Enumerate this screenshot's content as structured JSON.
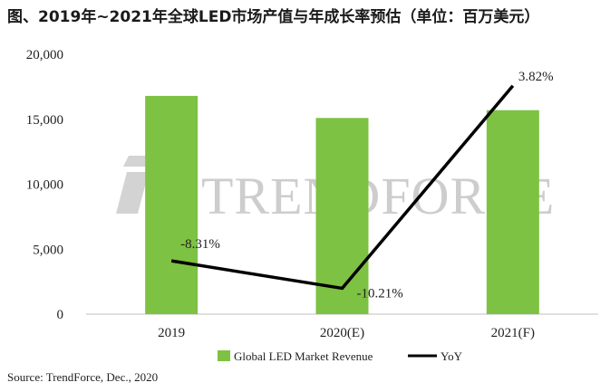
{
  "chart_data": {
    "type": "bar",
    "title": "图、2019年~2021年全球LED市场产值与年成长率预估（单位：百万美元）",
    "categories": [
      "2019",
      "2020(E)",
      "2021(F)"
    ],
    "series": [
      {
        "name": "Global LED Market Revenue",
        "type": "bar",
        "values": [
          16800,
          15100,
          15700
        ]
      },
      {
        "name": "YoY",
        "type": "line",
        "values": [
          -8.31,
          -10.21,
          3.82
        ]
      }
    ],
    "yoy_labels": [
      "-8.31%",
      "-10.21%",
      "3.82%"
    ],
    "ylim": [
      0,
      20000
    ],
    "yticks": [
      0,
      5000,
      10000,
      15000,
      20000
    ],
    "ytick_labels": [
      "0",
      "5,000",
      "10,000",
      "15,000",
      "20,000"
    ],
    "y2lim": [
      -12,
      6
    ],
    "legend_position": "bottom",
    "colors": {
      "bar": "#7dc242",
      "line": "#000000"
    },
    "watermark": "TRENDFORCE",
    "source": "Source: TrendForce,  Dec., 2020"
  }
}
